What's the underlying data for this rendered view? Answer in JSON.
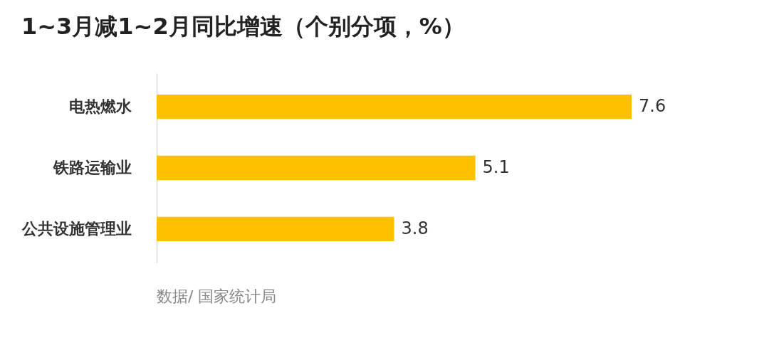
{
  "chart_data": {
    "type": "bar",
    "orientation": "horizontal",
    "title": "1~3月减1~2月同比增速（个别分项，%）",
    "categories": [
      "电热燃水",
      "铁路运输业",
      "公共设施管理业"
    ],
    "values": [
      7.6,
      5.1,
      3.8
    ],
    "color": "#ffc000",
    "data_labels": true,
    "annotations": [
      "数据/ 国家统计局"
    ]
  }
}
